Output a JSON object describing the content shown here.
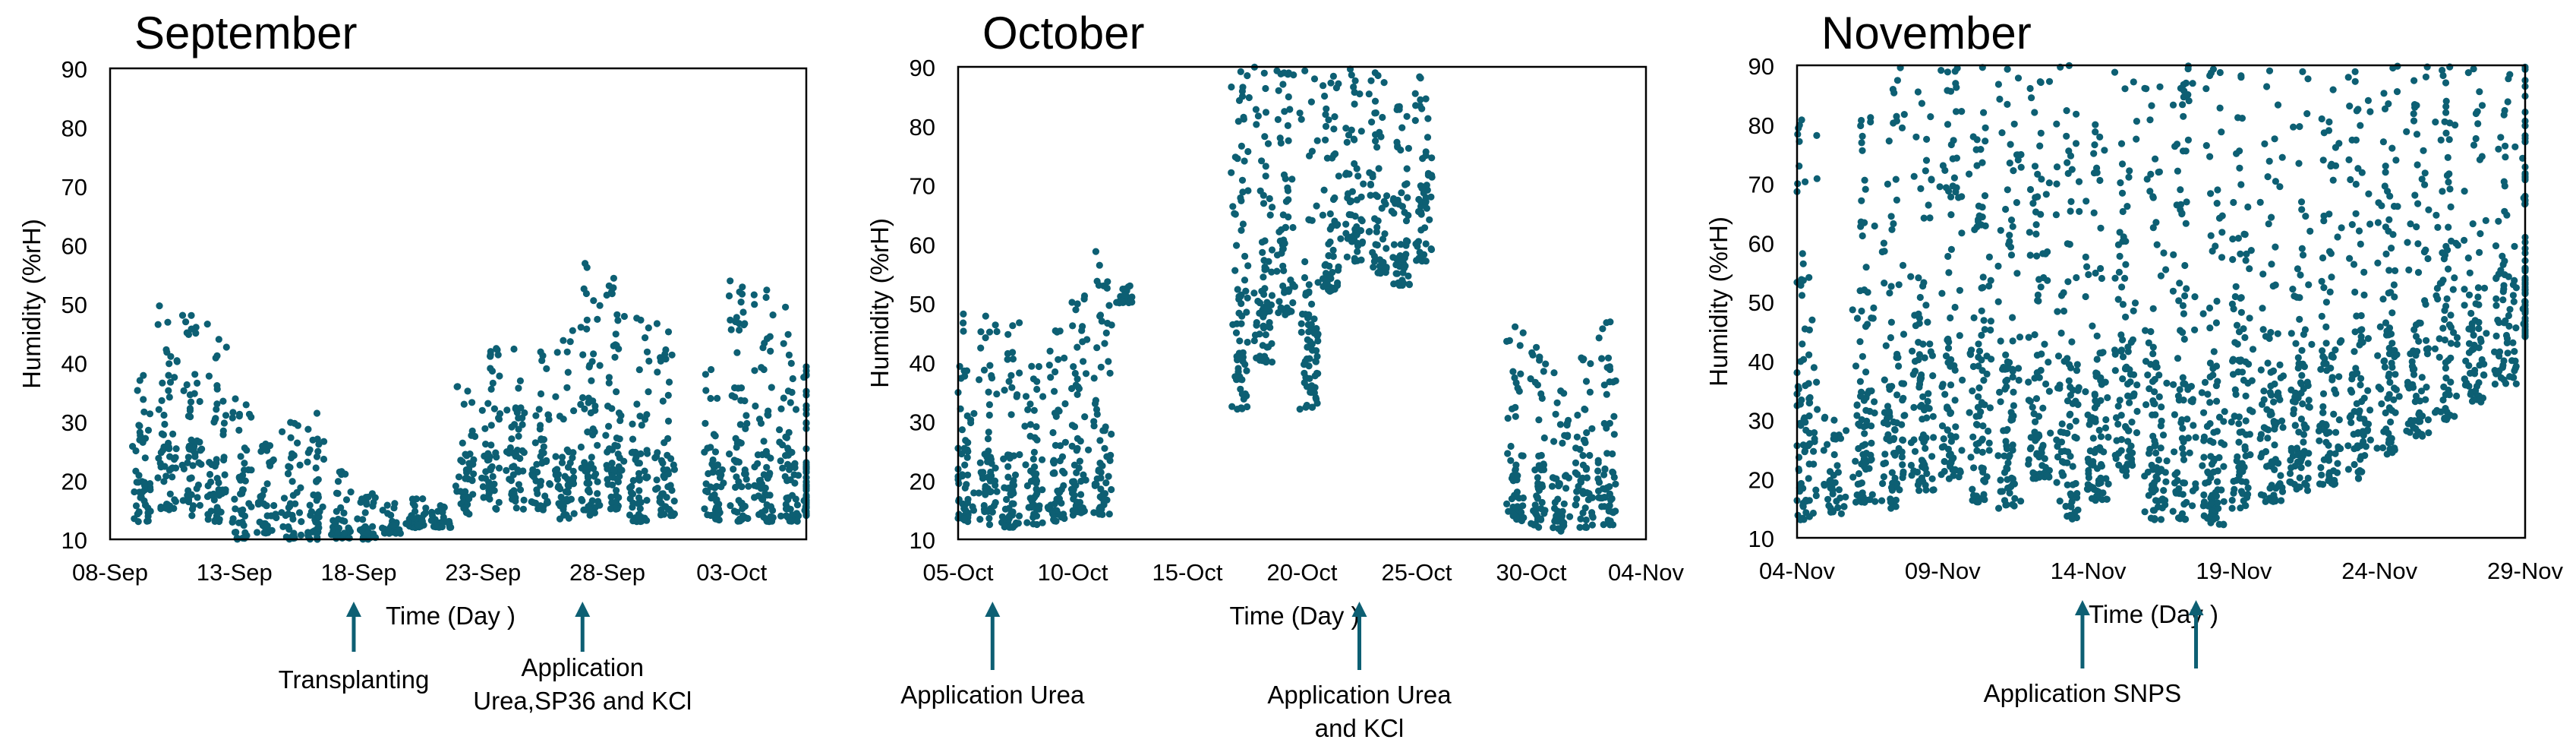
{
  "figure": {
    "point_color": "#0d5f73",
    "axis_color": "#000000",
    "marker": "circle",
    "text_color": "#000000"
  },
  "chart_data": [
    {
      "type": "scatter",
      "title": "September",
      "ylabel": "Humidity (%rH)",
      "xlabel": "Time (Day )",
      "ylim": [
        10,
        90
      ],
      "yticks": [
        10,
        20,
        30,
        40,
        50,
        60,
        70,
        80,
        90
      ],
      "xlim": [
        "2024-09-08",
        "2024-10-06"
      ],
      "xticks": [
        {
          "date": "2024-09-08",
          "label": "08-Sep"
        },
        {
          "date": "2024-09-13",
          "label": "13-Sep"
        },
        {
          "date": "2024-09-18",
          "label": "18-Sep"
        },
        {
          "date": "2024-09-23",
          "label": "23-Sep"
        },
        {
          "date": "2024-09-28",
          "label": "28-Sep"
        },
        {
          "date": "2024-10-03",
          "label": "03-Oct"
        }
      ],
      "daily_ranges": [
        {
          "date": "2024-09-09",
          "min": 13,
          "max": 38
        },
        {
          "date": "2024-09-10",
          "min": 15,
          "max": 50
        },
        {
          "date": "2024-09-11",
          "min": 14,
          "max": 50
        },
        {
          "date": "2024-09-12",
          "min": 13,
          "max": 48
        },
        {
          "date": "2024-09-13",
          "min": 10,
          "max": 34
        },
        {
          "date": "2024-09-14",
          "min": 11,
          "max": 27
        },
        {
          "date": "2024-09-15",
          "min": 10,
          "max": 30
        },
        {
          "date": "2024-09-16",
          "min": 10,
          "max": 32
        },
        {
          "date": "2024-09-17",
          "min": 10,
          "max": 22
        },
        {
          "date": "2024-09-18",
          "min": 10,
          "max": 18
        },
        {
          "date": "2024-09-19",
          "min": 11,
          "max": 17
        },
        {
          "date": "2024-09-20",
          "min": 12,
          "max": 17
        },
        {
          "date": "2024-09-21",
          "min": 12,
          "max": 16
        },
        {
          "date": "2024-09-22",
          "min": 14,
          "max": 37
        },
        {
          "date": "2024-09-23",
          "min": 15,
          "max": 43
        },
        {
          "date": "2024-09-24",
          "min": 15,
          "max": 44
        },
        {
          "date": "2024-09-25",
          "min": 15,
          "max": 44
        },
        {
          "date": "2024-09-26",
          "min": 13,
          "max": 48
        },
        {
          "date": "2024-09-27",
          "min": 14,
          "max": 57
        },
        {
          "date": "2024-09-28",
          "min": 15,
          "max": 57
        },
        {
          "date": "2024-09-29",
          "min": 13,
          "max": 48
        },
        {
          "date": "2024-09-30",
          "min": 14,
          "max": 47
        },
        {
          "date": "2024-10-02",
          "min": 13,
          "max": 46
        },
        {
          "date": "2024-10-03",
          "min": 13,
          "max": 54
        },
        {
          "date": "2024-10-04",
          "min": 13,
          "max": 53
        },
        {
          "date": "2024-10-05",
          "min": 13,
          "max": 50
        },
        {
          "date": "2024-10-06",
          "min": 14,
          "max": 40
        }
      ],
      "annotations": [
        {
          "date": "2024-09-17.8",
          "lines": [
            "Transplanting"
          ]
        },
        {
          "date": "2024-09-27",
          "lines": [
            "Application",
            "Urea,SP36 and KCl"
          ]
        }
      ]
    },
    {
      "type": "scatter",
      "title": "October",
      "ylabel": "Humidity (%rH)",
      "xlabel": "Time (Day )",
      "ylim": [
        10,
        90
      ],
      "yticks": [
        10,
        20,
        30,
        40,
        50,
        60,
        70,
        80,
        90
      ],
      "xlim": [
        "2024-10-05",
        "2024-11-04"
      ],
      "xticks": [
        {
          "date": "2024-10-05",
          "label": "05-Oct"
        },
        {
          "date": "2024-10-10",
          "label": "10-Oct"
        },
        {
          "date": "2024-10-15",
          "label": "15-Oct"
        },
        {
          "date": "2024-10-20",
          "label": "20-Oct"
        },
        {
          "date": "2024-10-25",
          "label": "25-Oct"
        },
        {
          "date": "2024-10-30",
          "label": "30-Oct"
        },
        {
          "date": "2024-11-04",
          "label": "04-Nov"
        }
      ],
      "daily_ranges": [
        {
          "date": "2024-10-05",
          "min": 13,
          "max": 49
        },
        {
          "date": "2024-10-06",
          "min": 12,
          "max": 49
        },
        {
          "date": "2024-10-07",
          "min": 12,
          "max": 49
        },
        {
          "date": "2024-10-08",
          "min": 12,
          "max": 43
        },
        {
          "date": "2024-10-09",
          "min": 13,
          "max": 46
        },
        {
          "date": "2024-10-10",
          "min": 14,
          "max": 54
        },
        {
          "date": "2024-10-11",
          "min": 14,
          "max": 59
        },
        {
          "date": "2024-10-12",
          "min": 50,
          "max": 53
        },
        {
          "date": "2024-10-17",
          "min": 32,
          "max": 90
        },
        {
          "date": "2024-10-18",
          "min": 40,
          "max": 90
        },
        {
          "date": "2024-10-19",
          "min": 48,
          "max": 90
        },
        {
          "date": "2024-10-20",
          "min": 32,
          "max": 90
        },
        {
          "date": "2024-10-21",
          "min": 52,
          "max": 90
        },
        {
          "date": "2024-10-22",
          "min": 57,
          "max": 90
        },
        {
          "date": "2024-10-23",
          "min": 55,
          "max": 90
        },
        {
          "date": "2024-10-24",
          "min": 53,
          "max": 90
        },
        {
          "date": "2024-10-25",
          "min": 57,
          "max": 89
        },
        {
          "date": "2024-10-29",
          "min": 13,
          "max": 46
        },
        {
          "date": "2024-10-30",
          "min": 12,
          "max": 43
        },
        {
          "date": "2024-10-31",
          "min": 11,
          "max": 39
        },
        {
          "date": "2024-11-01",
          "min": 12,
          "max": 42
        },
        {
          "date": "2024-11-02",
          "min": 12,
          "max": 47
        }
      ],
      "annotations": [
        {
          "date": "2024-10-06.5",
          "lines": [
            "Application Urea"
          ]
        },
        {
          "date": "2024-10-22.5",
          "lines": [
            "Application Urea",
            "and KCl"
          ]
        }
      ]
    },
    {
      "type": "scatter",
      "title": "November",
      "ylabel": "Humidity (%rH)",
      "xlabel": "Time (Day )",
      "ylim": [
        10,
        90
      ],
      "yticks": [
        10,
        20,
        30,
        40,
        50,
        60,
        70,
        80,
        90
      ],
      "xlim": [
        "2024-11-04",
        "2024-11-29"
      ],
      "xticks": [
        {
          "date": "2024-11-04",
          "label": "04-Nov"
        },
        {
          "date": "2024-11-09",
          "label": "09-Nov"
        },
        {
          "date": "2024-11-14",
          "label": "14-Nov"
        },
        {
          "date": "2024-11-19",
          "label": "19-Nov"
        },
        {
          "date": "2024-11-24",
          "label": "24-Nov"
        },
        {
          "date": "2024-11-29",
          "label": "29-Nov"
        }
      ],
      "daily_ranges": [
        {
          "date": "2024-11-04",
          "min": 13,
          "max": 82
        },
        {
          "date": "2024-11-05",
          "min": 14,
          "max": 31
        },
        {
          "date": "2024-11-06",
          "min": 16,
          "max": 90
        },
        {
          "date": "2024-11-07",
          "min": 15,
          "max": 90
        },
        {
          "date": "2024-11-08",
          "min": 18,
          "max": 90
        },
        {
          "date": "2024-11-09",
          "min": 20,
          "max": 90
        },
        {
          "date": "2024-11-10",
          "min": 16,
          "max": 90
        },
        {
          "date": "2024-11-11",
          "min": 15,
          "max": 90
        },
        {
          "date": "2024-11-12",
          "min": 20,
          "max": 90
        },
        {
          "date": "2024-11-13",
          "min": 13,
          "max": 90
        },
        {
          "date": "2024-11-14",
          "min": 16,
          "max": 90
        },
        {
          "date": "2024-11-15",
          "min": 20,
          "max": 90
        },
        {
          "date": "2024-11-16",
          "min": 13,
          "max": 90
        },
        {
          "date": "2024-11-17",
          "min": 13,
          "max": 90
        },
        {
          "date": "2024-11-18",
          "min": 12,
          "max": 90
        },
        {
          "date": "2024-11-19",
          "min": 15,
          "max": 90
        },
        {
          "date": "2024-11-20",
          "min": 16,
          "max": 90
        },
        {
          "date": "2024-11-21",
          "min": 18,
          "max": 90
        },
        {
          "date": "2024-11-22",
          "min": 19,
          "max": 90
        },
        {
          "date": "2024-11-23",
          "min": 20,
          "max": 90
        },
        {
          "date": "2024-11-24",
          "min": 24,
          "max": 90
        },
        {
          "date": "2024-11-25",
          "min": 27,
          "max": 90
        },
        {
          "date": "2024-11-26",
          "min": 30,
          "max": 90
        },
        {
          "date": "2024-11-27",
          "min": 33,
          "max": 90
        },
        {
          "date": "2024-11-28",
          "min": 36,
          "max": 90
        },
        {
          "date": "2024-11-29",
          "min": 44,
          "max": 90
        }
      ],
      "annotations": [
        {
          "date": "2024-11-13.8",
          "lines": [
            "Application SNPS"
          ]
        },
        {
          "date": "2024-11-17.7",
          "lines": []
        }
      ]
    }
  ]
}
